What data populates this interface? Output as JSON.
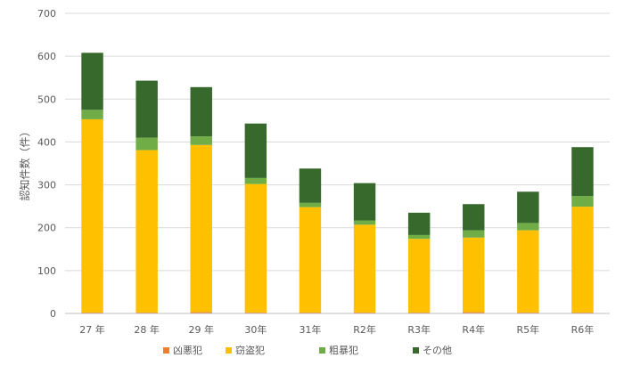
{
  "chart_data": {
    "type": "bar",
    "stacked": true,
    "categories": [
      "27 年",
      "28 年",
      "29 年",
      "30年",
      "31年",
      "R2年",
      "R3年",
      "R4年",
      "R5年",
      "R6年"
    ],
    "series": [
      {
        "name": "凶悪犯",
        "color": "#ED7D31",
        "values": [
          2,
          2,
          3,
          2,
          2,
          2,
          2,
          3,
          2,
          2
        ]
      },
      {
        "name": "窃盗犯",
        "color": "#FFC000",
        "values": [
          451,
          379,
          390,
          300,
          246,
          205,
          172,
          174,
          192,
          247
        ]
      },
      {
        "name": "粗暴犯",
        "color": "#70AD47",
        "values": [
          22,
          29,
          20,
          14,
          10,
          10,
          9,
          17,
          17,
          25
        ]
      },
      {
        "name": "その他",
        "color": "#38692C",
        "values": [
          133,
          133,
          115,
          127,
          80,
          87,
          52,
          61,
          73,
          114
        ]
      }
    ],
    "title": "",
    "xlabel": "",
    "ylabel": "認知件数（件）",
    "ylim": [
      0,
      700
    ],
    "yticks": [
      0,
      100,
      200,
      300,
      400,
      500,
      600,
      700
    ],
    "grid": true,
    "legend_position": "bottom"
  }
}
